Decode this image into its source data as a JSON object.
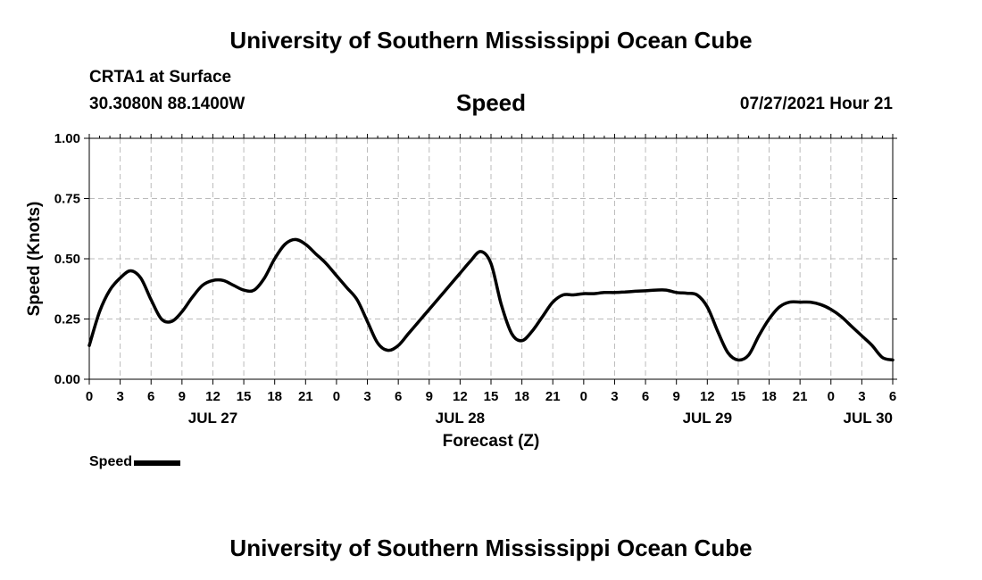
{
  "header": {
    "title": "University of Southern Mississippi Ocean Cube",
    "station": "CRTA1 at Surface",
    "coords": "30.3080N  88.1400W",
    "run_time": "07/27/2021 Hour 21"
  },
  "footer": {
    "title": "University of Southern Mississippi Ocean Cube"
  },
  "legend": {
    "label": "Speed"
  },
  "chart_data": {
    "type": "line",
    "title": "Speed",
    "xlabel": "Forecast (Z)",
    "ylabel": "Speed (Knots)",
    "xlim": [
      0,
      78
    ],
    "ylim": [
      0,
      1.0
    ],
    "grid": true,
    "y_ticks": [
      0,
      0.25,
      0.5,
      0.75,
      1.0
    ],
    "y_tick_labels": [
      "0.00",
      "0.25",
      "0.50",
      "0.75",
      "1.00"
    ],
    "x_ticks": [
      0,
      3,
      6,
      9,
      12,
      15,
      18,
      21,
      24,
      27,
      30,
      33,
      36,
      39,
      42,
      45,
      48,
      51,
      54,
      57,
      60,
      63,
      66,
      69,
      72,
      75,
      78
    ],
    "x_tick_labels": [
      "0",
      "3",
      "6",
      "9",
      "12",
      "15",
      "18",
      "21",
      "0",
      "3",
      "6",
      "9",
      "12",
      "15",
      "18",
      "21",
      "0",
      "3",
      "6",
      "9",
      "12",
      "15",
      "18",
      "21",
      "0",
      "3",
      "6"
    ],
    "date_labels": [
      {
        "x": 12,
        "label": "JUL 27"
      },
      {
        "x": 36,
        "label": "JUL 28"
      },
      {
        "x": 60,
        "label": "JUL 29"
      },
      {
        "x": 78,
        "label": "JUL 30"
      }
    ],
    "series": [
      {
        "name": "Speed",
        "color": "#000000",
        "x": [
          0,
          1,
          2,
          3,
          4,
          5,
          6,
          7,
          8,
          9,
          10,
          11,
          12,
          13,
          14,
          15,
          16,
          17,
          18,
          19,
          20,
          21,
          22,
          23,
          24,
          25,
          26,
          27,
          28,
          29,
          30,
          31,
          32,
          33,
          34,
          35,
          36,
          37,
          38,
          39,
          40,
          41,
          42,
          43,
          44,
          45,
          46,
          47,
          48,
          49,
          50,
          51,
          52,
          53,
          54,
          55,
          56,
          57,
          58,
          59,
          60,
          61,
          62,
          63,
          64,
          65,
          66,
          67,
          68,
          69,
          70,
          71,
          72,
          73,
          74,
          75,
          76,
          77,
          78
        ],
        "values": [
          0.14,
          0.28,
          0.37,
          0.42,
          0.45,
          0.42,
          0.33,
          0.25,
          0.24,
          0.28,
          0.34,
          0.39,
          0.41,
          0.41,
          0.39,
          0.37,
          0.37,
          0.42,
          0.5,
          0.56,
          0.58,
          0.56,
          0.52,
          0.48,
          0.43,
          0.38,
          0.33,
          0.24,
          0.15,
          0.12,
          0.14,
          0.19,
          0.24,
          0.29,
          0.34,
          0.39,
          0.44,
          0.49,
          0.53,
          0.48,
          0.31,
          0.19,
          0.16,
          0.2,
          0.26,
          0.32,
          0.35,
          0.35,
          0.355,
          0.355,
          0.36,
          0.36,
          0.362,
          0.365,
          0.367,
          0.37,
          0.37,
          0.36,
          0.357,
          0.35,
          0.3,
          0.2,
          0.11,
          0.08,
          0.1,
          0.18,
          0.25,
          0.3,
          0.32,
          0.32,
          0.32,
          0.31,
          0.29,
          0.26,
          0.22,
          0.18,
          0.14,
          0.09,
          0.08
        ]
      }
    ]
  }
}
